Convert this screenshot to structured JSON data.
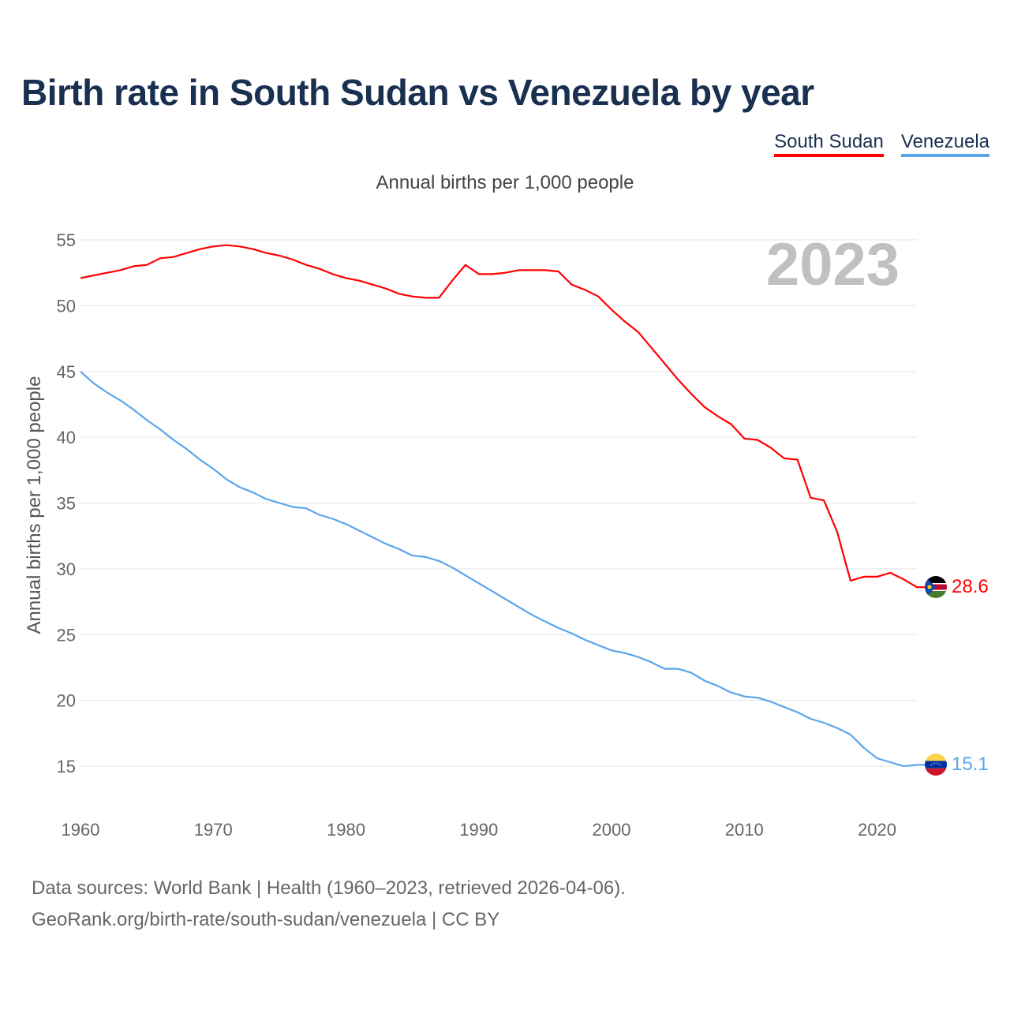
{
  "title": "Birth rate in South Sudan vs Venezuela by year",
  "legend": [
    "South Sudan",
    "Venezuela"
  ],
  "subtitle": "Annual births per 1,000 people",
  "year_label": "2023",
  "source_line1": "Data sources: World Bank | Health (1960–2023, retrieved 2026-04-06).",
  "source_line2": "GeoRank.org/birth-rate/south-sudan/venezuela | CC BY",
  "colors": {
    "south_sudan": "#ff0000",
    "venezuela": "#5aa5ea"
  },
  "chart_data": {
    "type": "line",
    "title": "Birth rate in South Sudan vs Venezuela by year",
    "xlabel": "",
    "ylabel": "Annual births per 1,000 people",
    "xlim": [
      1960,
      2023
    ],
    "ylim": [
      15,
      55
    ],
    "xticks": [
      1960,
      1970,
      1980,
      1990,
      2000,
      2010,
      2020
    ],
    "yticks": [
      15,
      20,
      25,
      30,
      35,
      40,
      45,
      50,
      55
    ],
    "grid": true,
    "legend_position": "top-right",
    "x_start": 1960,
    "series": [
      {
        "name": "South Sudan",
        "end_label": "28.6",
        "values": [
          52.1,
          52.3,
          52.5,
          52.7,
          53.0,
          53.1,
          53.6,
          53.7,
          54.0,
          54.3,
          54.5,
          54.6,
          54.5,
          54.3,
          54.0,
          53.8,
          53.5,
          53.1,
          52.8,
          52.4,
          52.1,
          51.9,
          51.6,
          51.3,
          50.9,
          50.7,
          50.6,
          50.6,
          51.9,
          53.1,
          52.4,
          52.4,
          52.5,
          52.7,
          52.7,
          52.7,
          52.6,
          51.6,
          51.2,
          50.7,
          49.7,
          48.8,
          48.0,
          46.8,
          45.6,
          44.4,
          43.3,
          42.3,
          41.6,
          41.0,
          39.9,
          39.8,
          39.2,
          38.4,
          38.3,
          35.4,
          35.2,
          32.8,
          29.1,
          29.4,
          29.4,
          29.7,
          29.2,
          28.6
        ]
      },
      {
        "name": "Venezuela",
        "end_label": "15.1",
        "values": [
          45.0,
          44.1,
          43.4,
          42.8,
          42.1,
          41.3,
          40.6,
          39.8,
          39.1,
          38.3,
          37.6,
          36.8,
          36.2,
          35.8,
          35.3,
          35.0,
          34.7,
          34.6,
          34.1,
          33.8,
          33.4,
          32.9,
          32.4,
          31.9,
          31.5,
          31.0,
          30.9,
          30.6,
          30.1,
          29.5,
          28.9,
          28.3,
          27.7,
          27.1,
          26.5,
          26.0,
          25.5,
          25.1,
          24.6,
          24.2,
          23.8,
          23.6,
          23.3,
          22.9,
          22.4,
          22.4,
          22.1,
          21.5,
          21.1,
          20.6,
          20.3,
          20.2,
          19.9,
          19.5,
          19.1,
          18.6,
          18.3,
          17.9,
          17.4,
          16.4,
          15.6,
          15.3,
          15.0,
          15.1
        ]
      }
    ]
  }
}
